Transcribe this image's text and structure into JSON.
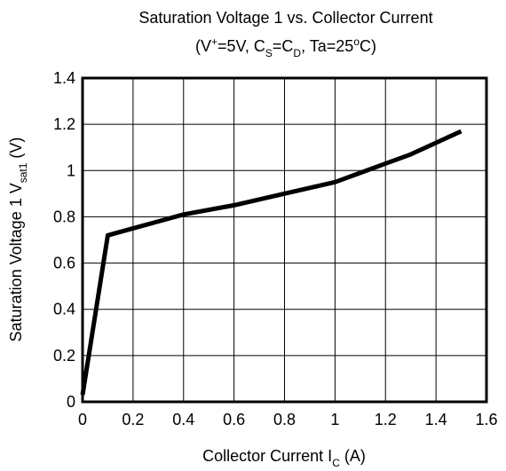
{
  "chart_data": {
    "type": "line",
    "title": "Saturation Voltage 1 vs. Collector Current",
    "subtitle": [
      {
        "text": "(V"
      },
      {
        "text": "+",
        "shift": "super"
      },
      {
        "text": "=5V, C"
      },
      {
        "text": "S",
        "shift": "sub"
      },
      {
        "text": "=C"
      },
      {
        "text": "D",
        "shift": "sub"
      },
      {
        "text": ", Ta=25"
      },
      {
        "text": "o",
        "shift": "super"
      },
      {
        "text": "C)"
      }
    ],
    "x_label": [
      {
        "text": "Collector Current I"
      },
      {
        "text": "C",
        "shift": "sub"
      },
      {
        "text": "  (A)"
      }
    ],
    "y_label": [
      {
        "text": "Saturation Voltage 1  V"
      },
      {
        "text": "sat1",
        "shift": "sub"
      },
      {
        "text": "  (V)"
      }
    ],
    "x": [
      0,
      0.1,
      0.2,
      0.3,
      0.4,
      0.6,
      0.8,
      1.0,
      1.1,
      1.2,
      1.3,
      1.4,
      1.5
    ],
    "values": [
      0.03,
      0.72,
      0.75,
      0.78,
      0.81,
      0.85,
      0.9,
      0.95,
      0.99,
      1.03,
      1.07,
      1.12,
      1.17
    ],
    "color": "#000000",
    "xlim": [
      0,
      1.6
    ],
    "xticks": [
      0,
      0.2,
      0.4,
      0.6,
      0.8,
      1,
      1.2,
      1.4,
      1.6
    ],
    "ylim": [
      0,
      1.4
    ],
    "yticks": [
      0,
      0.2,
      0.4,
      0.6,
      0.8,
      1,
      1.2,
      1.4
    ],
    "grid": true
  }
}
